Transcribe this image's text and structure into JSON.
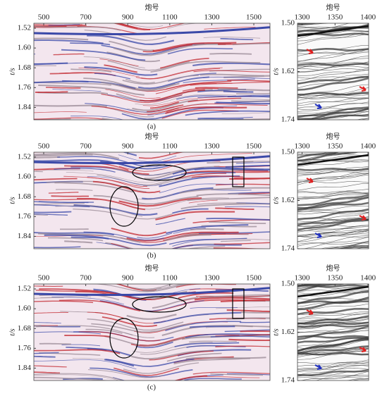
{
  "panels": [
    {
      "label": "(a)",
      "section": {
        "xlabel": "炮号",
        "ylabel": "t/s",
        "xlim": [
          453,
          1577
        ],
        "ylim": [
          1.5,
          1.89
        ],
        "xticks": [
          500,
          700,
          900,
          1100,
          1300,
          1500
        ],
        "yticks": [
          1.52,
          {
            "value": 1.6,
            "label": "1.60"
          },
          1.68,
          1.76,
          1.84
        ]
      },
      "zoom": {
        "xlabel": "炮号",
        "ylabel": "t/s",
        "xlim": [
          1293,
          1401
        ],
        "ylim": [
          1.5,
          1.74
        ],
        "xticks": [
          1300,
          1350,
          1400
        ],
        "yticks": [
          {
            "value": 1.5,
            "label": "1.50"
          },
          1.62,
          1.74
        ]
      }
    },
    {
      "label": "(b)",
      "section": {
        "xlabel": "炮号",
        "ylabel": "t/s",
        "xlim": [
          453,
          1577
        ],
        "ylim": [
          1.5,
          1.89
        ],
        "xticks": [
          500,
          700,
          900,
          1100,
          1300,
          1500
        ],
        "yticks": [
          1.52,
          {
            "value": 1.6,
            "label": "1.60"
          },
          1.68,
          1.76,
          1.84
        ]
      },
      "zoom": {
        "xlabel": "炮号",
        "ylabel": "t/s",
        "xlim": [
          1293,
          1401
        ],
        "ylim": [
          1.5,
          1.74
        ],
        "xticks": [
          1300,
          1350,
          1400
        ],
        "yticks": [
          {
            "value": 1.5,
            "label": "1.50"
          },
          1.62,
          1.74
        ]
      }
    },
    {
      "label": "(c)",
      "section": {
        "xlabel": "炮号",
        "ylabel": "t/s",
        "xlim": [
          453,
          1577
        ],
        "ylim": [
          1.5,
          1.89
        ],
        "xticks": [
          500,
          700,
          900,
          1100,
          1300,
          1500
        ],
        "yticks": [
          1.52,
          {
            "value": 1.6,
            "label": "1.60"
          },
          1.68,
          1.76,
          1.84
        ]
      },
      "zoom": {
        "xlabel": "炮号",
        "ylabel": "t/s",
        "xlim": [
          1293,
          1401
        ],
        "ylim": [
          1.5,
          1.74
        ],
        "xticks": [
          1300,
          1350,
          1400
        ],
        "yticks": [
          {
            "value": 1.5,
            "label": "1.50"
          },
          1.62,
          1.74
        ]
      }
    }
  ]
}
